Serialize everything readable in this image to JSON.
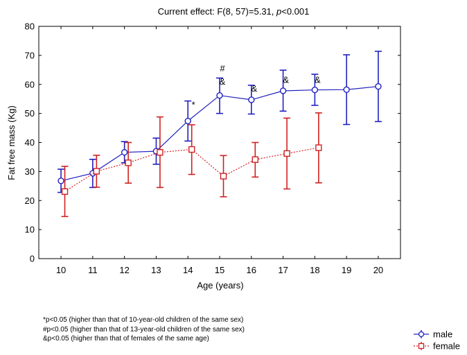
{
  "chart_data": {
    "type": "line",
    "title_prefix": "Current effect: F(8, 57)=5.31, ",
    "title_italic": "p",
    "title_suffix": "<0.001",
    "xlabel": "Age (years)",
    "ylabel": "Fat free mass (Kg)",
    "x": [
      10,
      11,
      12,
      13,
      14,
      15,
      16,
      17,
      18,
      19,
      20
    ],
    "xlim": [
      9.3,
      20.7
    ],
    "ylim": [
      0,
      80
    ],
    "yticks": [
      0,
      10,
      20,
      30,
      40,
      50,
      60,
      70,
      80
    ],
    "grid": false,
    "legend_position": "bottom-right",
    "series": [
      {
        "name": "male",
        "color": "#2020c0",
        "marker": "circle",
        "line_style": "solid",
        "x_offset": 0,
        "points": [
          {
            "x": 10,
            "y": 26.8,
            "lo": 22.8,
            "hi": 30.8
          },
          {
            "x": 11,
            "y": 29.4,
            "lo": 24.5,
            "hi": 34.2
          },
          {
            "x": 12,
            "y": 36.6,
            "lo": 33.0,
            "hi": 40.3
          },
          {
            "x": 13,
            "y": 37.0,
            "lo": 32.5,
            "hi": 41.5
          },
          {
            "x": 14,
            "y": 47.4,
            "lo": 40.5,
            "hi": 54.3
          },
          {
            "x": 15,
            "y": 56.2,
            "lo": 50.0,
            "hi": 62.2
          },
          {
            "x": 16,
            "y": 54.7,
            "lo": 49.8,
            "hi": 59.7
          },
          {
            "x": 17,
            "y": 57.8,
            "lo": 50.8,
            "hi": 64.9
          },
          {
            "x": 18,
            "y": 58.1,
            "lo": 52.8,
            "hi": 63.5
          },
          {
            "x": 19,
            "y": 58.2,
            "lo": 46.2,
            "hi": 70.2
          },
          {
            "x": 20,
            "y": 59.3,
            "lo": 47.2,
            "hi": 71.4
          }
        ]
      },
      {
        "name": "female",
        "color": "#d02020",
        "marker": "square",
        "line_style": "dotted",
        "x_offset": 0.12,
        "points": [
          {
            "x": 10,
            "y": 23.1,
            "lo": 14.5,
            "hi": 31.8
          },
          {
            "x": 11,
            "y": 30.1,
            "lo": 24.6,
            "hi": 35.6
          },
          {
            "x": 12,
            "y": 33.0,
            "lo": 26.0,
            "hi": 40.0
          },
          {
            "x": 13,
            "y": 36.6,
            "lo": 24.5,
            "hi": 48.8
          },
          {
            "x": 14,
            "y": 37.6,
            "lo": 29.0,
            "hi": 46.1
          },
          {
            "x": 15,
            "y": 28.4,
            "lo": 21.3,
            "hi": 35.5
          },
          {
            "x": 16,
            "y": 34.1,
            "lo": 28.1,
            "hi": 40.0
          },
          {
            "x": 17,
            "y": 36.2,
            "lo": 24.0,
            "hi": 48.4
          },
          {
            "x": 18,
            "y": 38.2,
            "lo": 26.1,
            "hi": 50.2
          }
        ]
      }
    ],
    "annotations": [
      {
        "text": "*",
        "x": 14,
        "y": 52
      },
      {
        "text": "#",
        "x": 15,
        "y": 64.5
      },
      {
        "text": "&",
        "x": 15,
        "y": 60
      },
      {
        "text": "&",
        "x": 16,
        "y": 57.5
      },
      {
        "text": "&",
        "x": 17,
        "y": 60.5
      },
      {
        "text": "&",
        "x": 18,
        "y": 60.5
      }
    ]
  },
  "footnotes": [
    "*p<0.05 (higher than that of 10-year-old children of the same sex)",
    "#p<0.05 (higher than that of 13-year-old children of the same sex)",
    "&p<0.05 (higher than that of females of the same age)"
  ]
}
